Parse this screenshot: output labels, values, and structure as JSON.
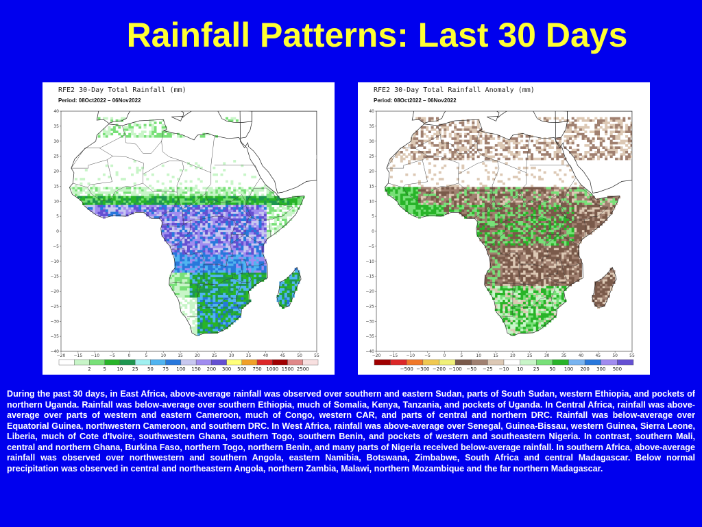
{
  "title": "Rainfall Patterns: Last 30 Days",
  "left_map": {
    "title": "RFE2 30-Day Total Rainfall (mm)",
    "period": "Period: 08Oct2022 – 06Nov2022",
    "lat_ticks": [
      "40",
      "35",
      "30",
      "25",
      "20",
      "15",
      "10",
      "5",
      "0",
      "−5",
      "−10",
      "−15",
      "−20",
      "−25",
      "−30",
      "−35",
      "−40"
    ],
    "lon_ticks": [
      "−20",
      "−15",
      "−10",
      "−5",
      "0",
      "5",
      "10",
      "15",
      "20",
      "25",
      "30",
      "35",
      "40",
      "45",
      "50",
      "55"
    ],
    "colorbar_labels": [
      "2",
      "5",
      "10",
      "25",
      "50",
      "75",
      "100",
      "150",
      "200",
      "300",
      "500",
      "750",
      "1000",
      "1500",
      "2500"
    ],
    "colorbar_colors": [
      "#ffffff",
      "#c8f5c8",
      "#78e078",
      "#28b428",
      "#1e9650",
      "#a0f0f0",
      "#50b4f0",
      "#2878dc",
      "#c8c8f0",
      "#a08cf0",
      "#6450d2",
      "#ffff7a",
      "#f0a028",
      "#dc2828",
      "#a00000",
      "#e08888",
      "#f8e0e0"
    ]
  },
  "right_map": {
    "title": "RFE2 30-Day Total Rainfall Anomaly (mm)",
    "period": "Period: 08Oct2022 – 06Nov2022",
    "lat_ticks": [
      "40",
      "35",
      "30",
      "25",
      "20",
      "15",
      "10",
      "5",
      "0",
      "−5",
      "−10",
      "−15",
      "−20",
      "−25",
      "−30",
      "−35",
      "−40"
    ],
    "lon_ticks": [
      "−20",
      "−15",
      "−10",
      "−5",
      "0",
      "5",
      "10",
      "15",
      "20",
      "25",
      "30",
      "35",
      "40",
      "45",
      "50",
      "55"
    ],
    "colorbar_labels": [
      "−500",
      "−300",
      "−200",
      "−100",
      "−50",
      "−25",
      "−10",
      "10",
      "25",
      "50",
      "100",
      "200",
      "300",
      "500"
    ],
    "colorbar_colors": [
      "#a00000",
      "#dc2828",
      "#f07828",
      "#f0c850",
      "#f0f078",
      "#7a5a4a",
      "#a08070",
      "#dcc8b4",
      "#ffffff",
      "#c8f5c8",
      "#78e078",
      "#28b428",
      "#78b4f0",
      "#2878dc",
      "#a08cf0",
      "#6450d2"
    ]
  },
  "description": "During the past 30 days, in East Africa, above-average rainfall was observed over southern and eastern Sudan, parts of South Sudan, western Ethiopia, and pockets of northern Uganda. Rainfall was below-average over southern Ethiopia, much of Somalia, Kenya, Tanzania, and pockets of Uganda. In Central Africa, rainfall was above-average over parts of western and eastern Cameroon, much of Congo, western CAR, and parts of central and northern DRC. Rainfall was below-average over Equatorial Guinea, northwestern Cameroon, and southern DRC. In West Africa, rainfall was above-average over Senegal, Guinea-Bissau, western Guinea, Sierra Leone, Liberia, much of Cote d'Ivoire, southwestern Ghana, southern Togo, southern Benin, and pockets of western and southeastern Nigeria. In contrast, southern Mali, central and northern Ghana, Burkina Faso, northern Togo, northern Benin, and many parts of Nigeria received below-average rainfall. In southern Africa, above-average rainfall was observed over northwestern and southern Angola, eastern Namibia, Botswana, Zimbabwe, South Africa and central Madagascar. Below normal precipitation was observed in central and northeastern Angola, northern Zambia, Malawi, northern Mozambique and the far northern Madagascar."
}
